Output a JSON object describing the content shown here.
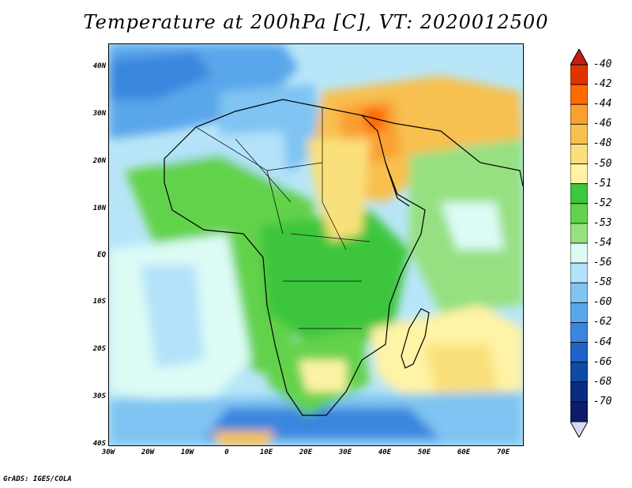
{
  "title": "Temperature at 200hPa [C], VT: 2020012500",
  "footer": "GrADS: IGES/COLA",
  "map": {
    "lat_labels": [
      "40N",
      "30N",
      "20N",
      "10N",
      "EQ",
      "10S",
      "20S",
      "30S",
      "40S"
    ],
    "lon_labels": [
      "30W",
      "20W",
      "10W",
      "0",
      "10E",
      "20E",
      "30E",
      "40E",
      "50E",
      "60E",
      "70E"
    ],
    "lon_range": [
      -30,
      75
    ],
    "lat_range": [
      -40,
      45
    ]
  },
  "colorbar": {
    "levels": [
      "-40",
      "-42",
      "-44",
      "-46",
      "-48",
      "-50",
      "-51",
      "-52",
      "-53",
      "-54",
      "-56",
      "-58",
      "-60",
      "-62",
      "-64",
      "-66",
      "-68",
      "-70"
    ],
    "colors": [
      "#e03400",
      "#ff6b00",
      "#f9a030",
      "#f8c050",
      "#fae07a",
      "#fff3a5",
      "#3ec63e",
      "#63d24c",
      "#96e081",
      "#dcfbf5",
      "#b3e2fa",
      "#7fc4f2",
      "#5aa6eb",
      "#3a86de",
      "#1e63c8",
      "#0e4aa6",
      "#0a2d83",
      "#0d1b6a"
    ],
    "top_color": "#c41e10",
    "bottom_color": "#d8d8f5"
  }
}
